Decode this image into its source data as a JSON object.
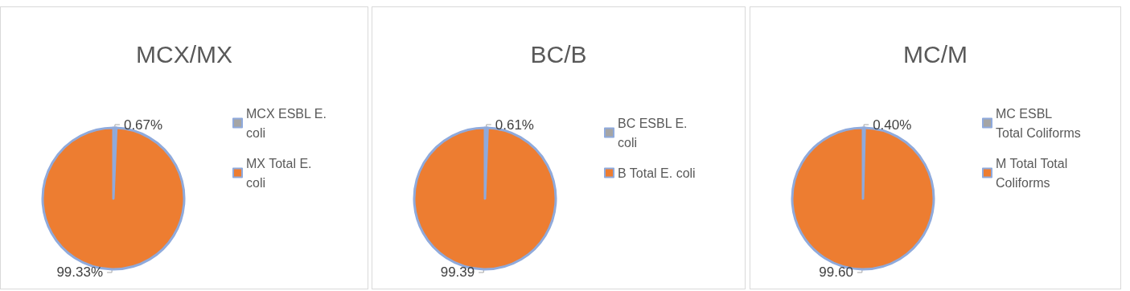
{
  "chart_data": [
    {
      "type": "pie",
      "title": "MCX/MX",
      "categories": [
        "MCX ESBL E. coli",
        "MX Total E. coli"
      ],
      "values": [
        0.67,
        99.33
      ],
      "colors": [
        "#a5a5a5",
        "#ed7d31"
      ],
      "value_labels": [
        "0.67%",
        "99.33%"
      ],
      "legend": "right"
    },
    {
      "type": "pie",
      "title": "BC/B",
      "categories": [
        "BC ESBL E. coli",
        "B Total E. coli"
      ],
      "values": [
        0.61,
        99.39
      ],
      "colors": [
        "#a5a5a5",
        "#ed7d31"
      ],
      "value_labels": [
        "0.61%",
        "99.39"
      ],
      "legend": "right"
    },
    {
      "type": "pie",
      "title": "MC/M",
      "categories": [
        "MC ESBL Total Coliforms",
        "M Total Total Coliforms"
      ],
      "values": [
        0.4,
        99.6
      ],
      "colors": [
        "#a5a5a5",
        "#ed7d31"
      ],
      "value_labels": [
        "0.40%",
        "99.60"
      ],
      "legend": "right"
    }
  ]
}
